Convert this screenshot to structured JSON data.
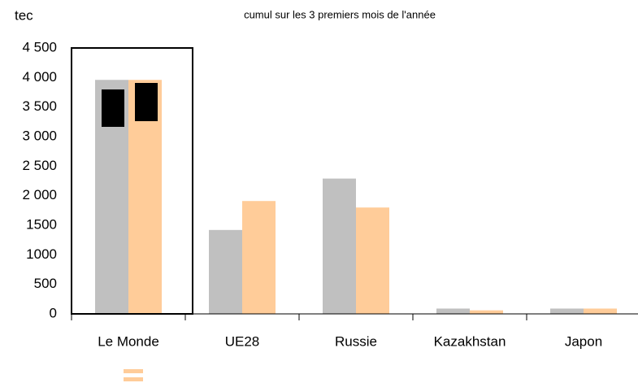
{
  "chart_data": {
    "type": "bar",
    "title": "cumul sur les 3 premiers mois de l'année",
    "y_label": "tec",
    "categories": [
      "Le Monde",
      "UE28",
      "Russie",
      "Kazakhstan",
      "Japon"
    ],
    "series": [
      {
        "color": "#c0c0c0",
        "values": [
          3960,
          1420,
          2290,
          90,
          90
        ]
      },
      {
        "color": "#ffcc99",
        "values": [
          3960,
          1910,
          1800,
          60,
          90
        ]
      }
    ],
    "ylim": [
      0,
      4500
    ],
    "yticks": [
      0,
      500,
      1000,
      1500,
      {
        "value": 2000,
        "label": "2 000"
      },
      {
        "value": 2500,
        "label": "2 500"
      },
      {
        "value": 3000,
        "label": "3 000"
      },
      {
        "value": 3500,
        "label": "3 500"
      },
      {
        "value": 4000,
        "label": "4 000"
      },
      {
        "value": 4500,
        "label": "4 500"
      }
    ],
    "grid": false
  }
}
